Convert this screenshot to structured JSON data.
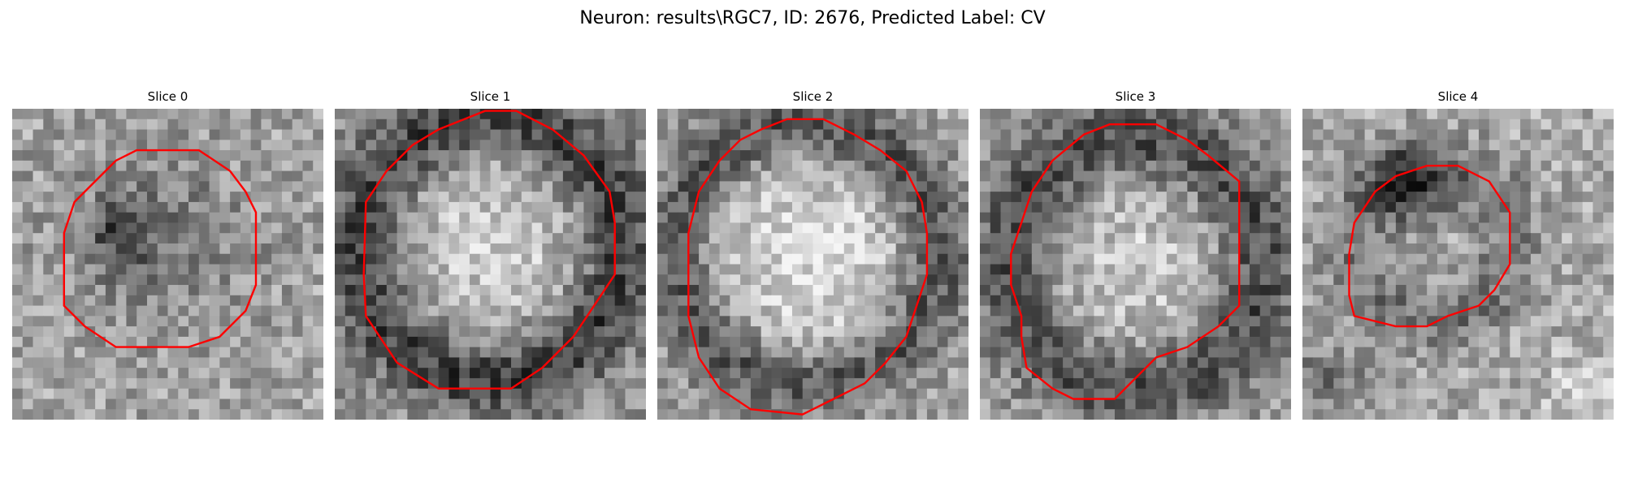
{
  "figure": {
    "title": "Neuron: results\\RGC7, ID: 2676, Predicted Label: CV"
  },
  "colors": {
    "contour": "#ff0000",
    "background": "#ffffff"
  },
  "slices": [
    {
      "label": "Slice 0"
    },
    {
      "label": "Slice 1"
    },
    {
      "label": "Slice 2"
    },
    {
      "label": "Slice 3"
    },
    {
      "label": "Slice 4"
    }
  ]
}
